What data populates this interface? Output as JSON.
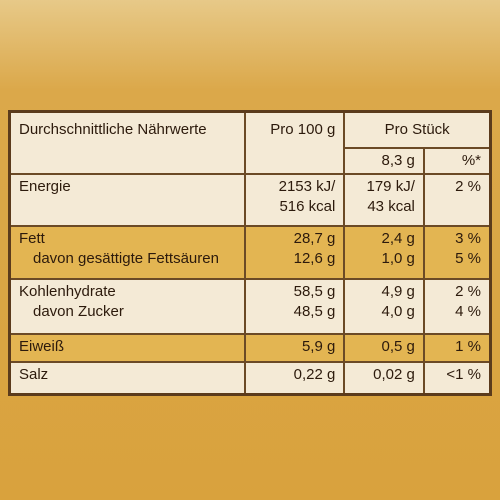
{
  "header": {
    "title": "Durchschnittliche Nährwerte",
    "per100": "Pro 100 g",
    "perPiece": "Pro Stück"
  },
  "subheader": {
    "pieceWeight": "8,3 g",
    "percent": "%*"
  },
  "table": {
    "rows": [
      [
        [
          "Energie"
        ],
        [
          "2153 kJ/",
          "516 kcal"
        ],
        [
          "179 kJ/",
          "43 kcal"
        ],
        [
          "2 %"
        ]
      ],
      [
        [
          "Fett",
          "davon gesättigte Fettsäuren"
        ],
        [
          "28,7 g",
          "12,6 g"
        ],
        [
          "2,4 g",
          "1,0 g"
        ],
        [
          "3 %",
          "5 %"
        ]
      ],
      [
        [
          "Kohlenhydrate",
          "davon Zucker"
        ],
        [
          "58,5 g",
          "48,5 g"
        ],
        [
          "4,9 g",
          "4,0 g"
        ],
        [
          "2 %",
          "4 %"
        ]
      ],
      [
        [
          "Eiweiß"
        ],
        [
          "5,9 g"
        ],
        [
          "0,5 g"
        ],
        [
          "1 %"
        ]
      ],
      [
        [
          "Salz"
        ],
        [
          "0,22 g"
        ],
        [
          "0,02 g"
        ],
        [
          "<1 %"
        ]
      ]
    ]
  }
}
